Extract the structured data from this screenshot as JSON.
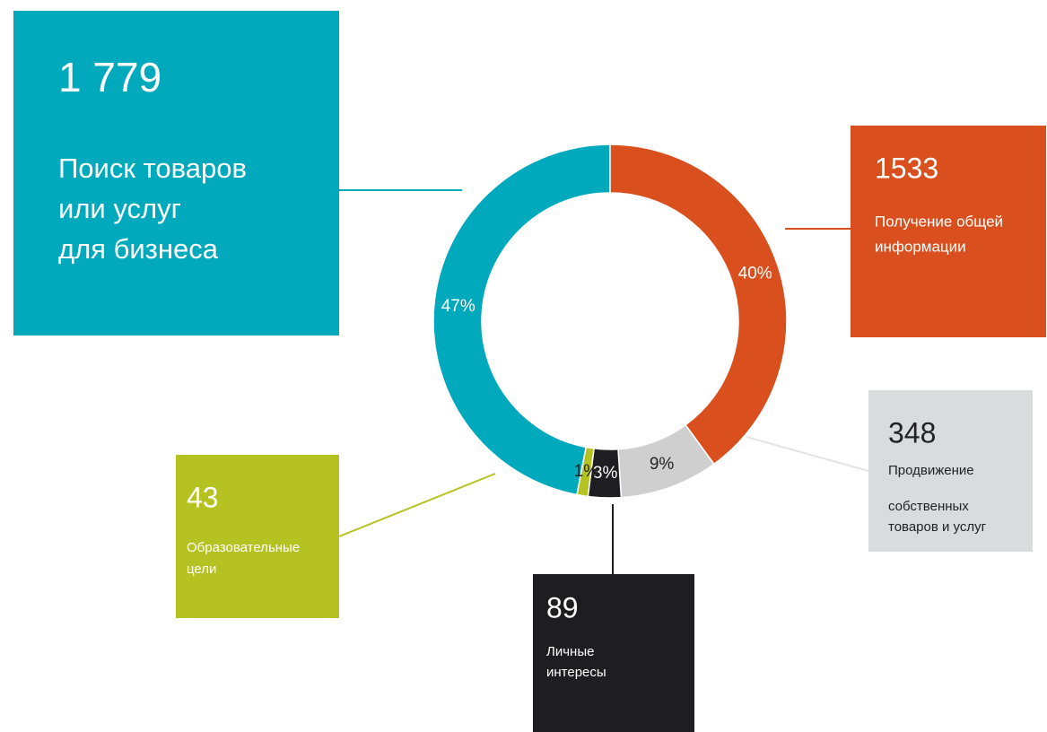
{
  "chart_data": {
    "type": "donut",
    "categories": [
      [
        "Поиск товаров",
        "или услуг",
        "для бизнеса"
      ],
      [
        "Получение общей",
        "информации"
      ],
      [
        "Продвижение",
        "собственных",
        "товаров и услуг"
      ],
      [
        "Личные",
        "интересы"
      ],
      [
        " Образовательные",
        "цели"
      ]
    ],
    "values": [
      47,
      40,
      9,
      3,
      1
    ],
    "value_labels": [
      "47%",
      "40%",
      "9%",
      "3%",
      "1%"
    ],
    "counts": [
      {
        "value": 1779,
        "label": "1 779"
      },
      1533,
      348,
      89,
      43
    ],
    "colors": [
      "#00a9bb",
      "#d9501e",
      "#cfcfcf",
      "#1e1e22",
      "#b5c221"
    ]
  }
}
